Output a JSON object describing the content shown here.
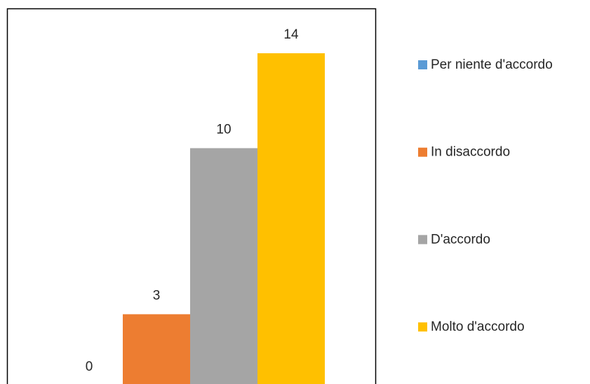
{
  "chart_data": {
    "type": "bar",
    "series": [
      {
        "name": "Per niente d'accordo",
        "color": "#5b9bd5",
        "values": [
          0
        ]
      },
      {
        "name": "In disaccordo",
        "color": "#ed7d31",
        "values": [
          3
        ]
      },
      {
        "name": "D'accordo",
        "color": "#a5a5a5",
        "values": [
          10
        ]
      },
      {
        "name": "Molto d'accordo",
        "color": "#ffc000",
        "values": [
          14
        ]
      }
    ],
    "data_labels": true,
    "legend": "right"
  }
}
